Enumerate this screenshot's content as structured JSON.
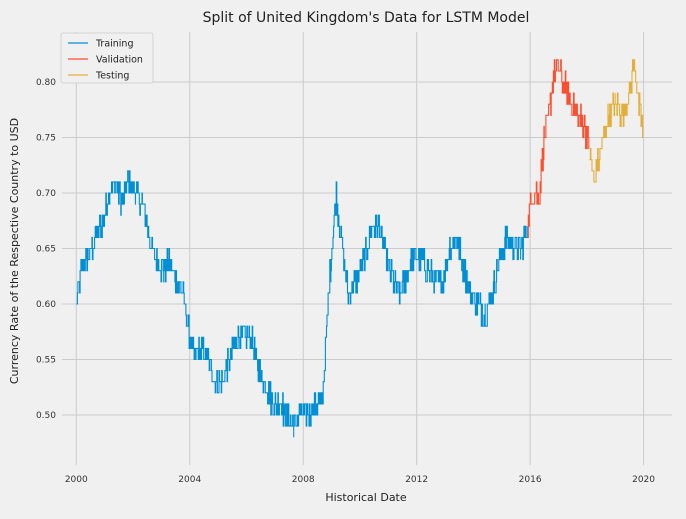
{
  "chart_data": {
    "type": "line",
    "title": "Split of United Kingdom's Data for LSTM Model",
    "xlabel": "Historical Date",
    "ylabel": "Currency Rate of the Respective Country to USD",
    "xlim": [
      "1999-07-01",
      "2021-01-01"
    ],
    "ylim": [
      0.455,
      0.845
    ],
    "x_ticks": [
      "2000",
      "2004",
      "2008",
      "2012",
      "2016",
      "2020"
    ],
    "y_ticks": [
      "0.50",
      "0.55",
      "0.60",
      "0.65",
      "0.70",
      "0.75",
      "0.80"
    ],
    "grid": true,
    "legend_position": "top-left",
    "series": [
      {
        "name": "Training",
        "color": "#008fd5",
        "points": [
          [
            "2000-01-01",
            0.6
          ],
          [
            "2000-03-01",
            0.63
          ],
          [
            "2000-06-01",
            0.64
          ],
          [
            "2000-09-01",
            0.66
          ],
          [
            "2001-01-01",
            0.68
          ],
          [
            "2001-03-01",
            0.7
          ],
          [
            "2001-06-01",
            0.71
          ],
          [
            "2001-08-01",
            0.69
          ],
          [
            "2001-11-01",
            0.71
          ],
          [
            "2002-02-01",
            0.7
          ],
          [
            "2002-05-01",
            0.69
          ],
          [
            "2002-07-01",
            0.67
          ],
          [
            "2002-09-01",
            0.65
          ],
          [
            "2002-11-01",
            0.64
          ],
          [
            "2003-02-01",
            0.63
          ],
          [
            "2003-04-01",
            0.64
          ],
          [
            "2003-07-01",
            0.62
          ],
          [
            "2003-10-01",
            0.61
          ],
          [
            "2004-01-01",
            0.57
          ],
          [
            "2004-03-01",
            0.55
          ],
          [
            "2004-06-01",
            0.56
          ],
          [
            "2004-09-01",
            0.55
          ],
          [
            "2004-12-01",
            0.53
          ],
          [
            "2005-03-01",
            0.53
          ],
          [
            "2005-06-01",
            0.55
          ],
          [
            "2005-09-01",
            0.57
          ],
          [
            "2005-12-01",
            0.57
          ],
          [
            "2006-03-01",
            0.57
          ],
          [
            "2006-06-01",
            0.54
          ],
          [
            "2006-09-01",
            0.53
          ],
          [
            "2006-12-01",
            0.51
          ],
          [
            "2007-03-01",
            0.51
          ],
          [
            "2007-06-01",
            0.5
          ],
          [
            "2007-09-01",
            0.49
          ],
          [
            "2007-12-01",
            0.5
          ],
          [
            "2008-03-01",
            0.5
          ],
          [
            "2008-06-01",
            0.51
          ],
          [
            "2008-09-01",
            0.51
          ],
          [
            "2008-12-01",
            0.62
          ],
          [
            "2009-03-01",
            0.7
          ],
          [
            "2009-05-01",
            0.66
          ],
          [
            "2009-08-01",
            0.61
          ],
          [
            "2009-11-01",
            0.62
          ],
          [
            "2010-03-01",
            0.64
          ],
          [
            "2010-06-01",
            0.67
          ],
          [
            "2010-09-01",
            0.67
          ],
          [
            "2010-12-01",
            0.64
          ],
          [
            "2011-03-01",
            0.62
          ],
          [
            "2011-06-01",
            0.61
          ],
          [
            "2011-09-01",
            0.63
          ],
          [
            "2011-12-01",
            0.64
          ],
          [
            "2012-03-01",
            0.64
          ],
          [
            "2012-06-01",
            0.63
          ],
          [
            "2012-09-01",
            0.62
          ],
          [
            "2012-12-01",
            0.62
          ],
          [
            "2013-03-01",
            0.65
          ],
          [
            "2013-06-01",
            0.66
          ],
          [
            "2013-09-01",
            0.63
          ],
          [
            "2013-12-01",
            0.61
          ],
          [
            "2014-03-01",
            0.6
          ],
          [
            "2014-06-01",
            0.59
          ],
          [
            "2014-09-01",
            0.61
          ],
          [
            "2014-12-01",
            0.64
          ],
          [
            "2015-03-01",
            0.66
          ],
          [
            "2015-06-01",
            0.65
          ],
          [
            "2015-09-01",
            0.65
          ],
          [
            "2015-12-01",
            0.67
          ]
        ]
      },
      {
        "name": "Validation",
        "color": "#fc4f30",
        "points": [
          [
            "2015-12-01",
            0.67
          ],
          [
            "2016-02-01",
            0.7
          ],
          [
            "2016-05-01",
            0.7
          ],
          [
            "2016-07-01",
            0.75
          ],
          [
            "2016-09-01",
            0.77
          ],
          [
            "2016-11-01",
            0.81
          ],
          [
            "2017-01-01",
            0.81
          ],
          [
            "2017-03-01",
            0.8
          ],
          [
            "2017-06-01",
            0.78
          ],
          [
            "2017-09-01",
            0.77
          ],
          [
            "2017-12-01",
            0.76
          ],
          [
            "2018-02-01",
            0.74
          ]
        ]
      },
      {
        "name": "Testing",
        "color": "#e5ae38",
        "points": [
          [
            "2018-02-01",
            0.74
          ],
          [
            "2018-04-01",
            0.71
          ],
          [
            "2018-07-01",
            0.74
          ],
          [
            "2018-10-01",
            0.77
          ],
          [
            "2019-01-01",
            0.78
          ],
          [
            "2019-04-01",
            0.77
          ],
          [
            "2019-07-01",
            0.79
          ],
          [
            "2019-09-01",
            0.82
          ],
          [
            "2019-11-01",
            0.78
          ],
          [
            "2020-01-01",
            0.75
          ]
        ]
      }
    ]
  }
}
